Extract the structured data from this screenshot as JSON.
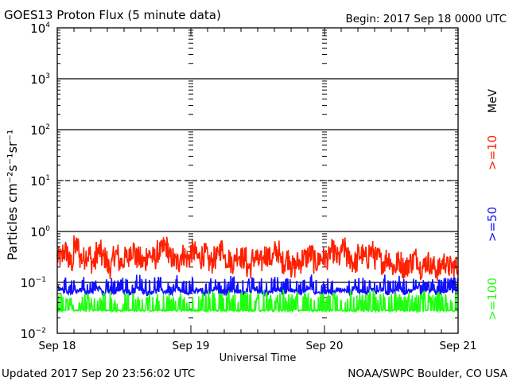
{
  "chart_data": {
    "type": "line",
    "title": "GOES13 Proton Flux (5 minute data)",
    "begin_label": "Begin: 2017 Sep 18 0000 UTC",
    "xlabel": "Universal Time",
    "ylabel": "Particles cm⁻²s⁻¹sr⁻¹",
    "yscale": "log",
    "ylim": [
      0.01,
      10000
    ],
    "y_ticks": [
      {
        "base": "10",
        "exp": "4"
      },
      {
        "base": "10",
        "exp": "3"
      },
      {
        "base": "10",
        "exp": "2"
      },
      {
        "base": "10",
        "exp": "1"
      },
      {
        "base": "10",
        "exp": "0"
      },
      {
        "base": "10",
        "exp": "-1"
      },
      {
        "base": "10",
        "exp": "-2"
      }
    ],
    "x_ticks": [
      "Sep 18",
      "Sep 19",
      "Sep 20",
      "Sep 21"
    ],
    "x_range_hours": [
      0,
      72
    ],
    "unit_label": "MeV",
    "grid": {
      "solid": [
        1000,
        100,
        1,
        0.1
      ],
      "dashed": [
        10
      ]
    },
    "series": [
      {
        "name": ">=10",
        "color": "#ff2000",
        "hourly": [
          0.3,
          0.4,
          0.25,
          0.5,
          0.3,
          0.35,
          0.25,
          0.4,
          0.3,
          0.2,
          0.35,
          0.25,
          0.3,
          0.45,
          0.3,
          0.25,
          0.35,
          0.3,
          0.4,
          0.5,
          0.3,
          0.25,
          0.35,
          0.3,
          0.4,
          0.3,
          0.35,
          0.25,
          0.3,
          0.45,
          0.3,
          0.25,
          0.35,
          0.3,
          0.2,
          0.3,
          0.25,
          0.35,
          0.3,
          0.4,
          0.25,
          0.3,
          0.2,
          0.25,
          0.3,
          0.35,
          0.25,
          0.3,
          0.3,
          0.4,
          0.3,
          0.45,
          0.3,
          0.25,
          0.35,
          0.3,
          0.4,
          0.3,
          0.25,
          0.3,
          0.2,
          0.25,
          0.2,
          0.25,
          0.3,
          0.2,
          0.25,
          0.2,
          0.18,
          0.25,
          0.2,
          0.2
        ]
      },
      {
        "name": ">=50",
        "color": "#1010ff",
        "hourly": [
          0.08,
          0.07,
          0.065,
          0.07,
          0.075,
          0.065,
          0.07,
          0.08,
          0.065,
          0.07,
          0.065,
          0.075,
          0.07,
          0.065,
          0.08,
          0.07,
          0.065,
          0.07,
          0.075,
          0.07,
          0.065,
          0.08,
          0.07,
          0.065,
          0.07,
          0.075,
          0.065,
          0.07,
          0.08,
          0.07,
          0.065,
          0.075,
          0.07,
          0.065,
          0.07,
          0.08,
          0.07,
          0.065,
          0.07,
          0.075,
          0.065,
          0.07,
          0.075,
          0.065,
          0.07,
          0.08,
          0.065,
          0.07,
          0.07,
          0.065,
          0.075,
          0.07,
          0.065,
          0.08,
          0.07,
          0.065,
          0.075,
          0.07,
          0.08,
          0.065,
          0.07,
          0.075,
          0.065,
          0.07,
          0.08,
          0.065,
          0.07,
          0.075,
          0.065,
          0.07,
          0.075,
          0.07
        ]
      },
      {
        "name": ">=100",
        "color": "#20ff10",
        "hourly": [
          0.035,
          0.03,
          0.03,
          0.032,
          0.03,
          0.035,
          0.03,
          0.03,
          0.035,
          0.04,
          0.035,
          0.03,
          0.035,
          0.04,
          0.035,
          0.04,
          0.035,
          0.03,
          0.035,
          0.04,
          0.035,
          0.03,
          0.035,
          0.03,
          0.035,
          0.03,
          0.035,
          0.04,
          0.035,
          0.035,
          0.04,
          0.035,
          0.035,
          0.04,
          0.035,
          0.03,
          0.035,
          0.04,
          0.035,
          0.035,
          0.04,
          0.035,
          0.035,
          0.04,
          0.035,
          0.035,
          0.04,
          0.035,
          0.035,
          0.04,
          0.035,
          0.035,
          0.04,
          0.04,
          0.035,
          0.035,
          0.04,
          0.035,
          0.035,
          0.04,
          0.035,
          0.035,
          0.04,
          0.035,
          0.035,
          0.04,
          0.035,
          0.035,
          0.04,
          0.035,
          0.035,
          0.04
        ]
      }
    ]
  },
  "footer": {
    "updated": "Updated 2017 Sep 20 23:56:02 UTC",
    "credit": "NOAA/SWPC Boulder, CO USA"
  }
}
